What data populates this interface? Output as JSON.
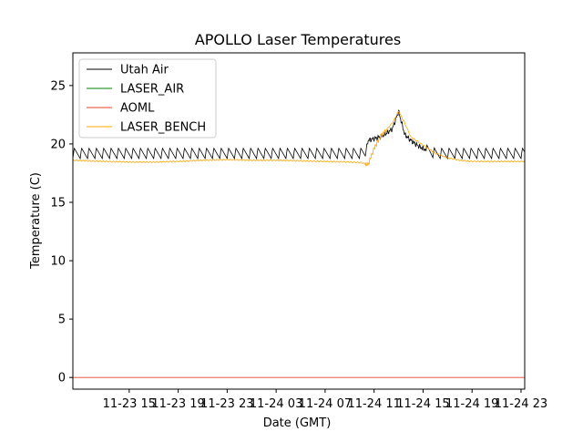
{
  "chart_data": {
    "type": "line",
    "title": "APOLLO Laser Temperatures",
    "xlabel": "Date (GMT)",
    "ylabel": "Temperature (C)",
    "ylim": [
      -1.0,
      27.8
    ],
    "xlim_hours": [
      -4.6,
      32.3
    ],
    "x_tick_hours": [
      0,
      4,
      8,
      12,
      16,
      20,
      24,
      28,
      32
    ],
    "x_tick_labels": [
      "11-23 15",
      "11-23 19",
      "11-23 23",
      "11-24 03",
      "11-24 07",
      "11-24 11",
      "11-24 15",
      "11-24 19",
      "11-24 23"
    ],
    "y_ticks": [
      0,
      5,
      10,
      15,
      20,
      25
    ],
    "y_tick_labels": [
      "0",
      "5",
      "10",
      "15",
      "20",
      "25"
    ],
    "legend_location": "upper-left",
    "grid": false,
    "series": [
      {
        "name": "Utah Air",
        "color": "#000000",
        "x_hours": [
          -4.6,
          19.3,
          19.5,
          20.5,
          21.0,
          21.5,
          22.0,
          22.5,
          23.0,
          23.5,
          24.0,
          25.0,
          26.0,
          27.0,
          28.0,
          32.3
        ],
        "values": [
          19.2,
          19.2,
          20.3,
          20.6,
          20.9,
          21.3,
          22.8,
          20.8,
          20.3,
          19.9,
          19.6,
          19.2,
          19.2,
          19.2,
          19.2,
          19.2
        ],
        "sawtooth_amplitude": 0.45,
        "sawtooth_period_hours": 0.6
      },
      {
        "name": "LASER_AIR",
        "color": "#008000",
        "x_hours": [],
        "values": []
      },
      {
        "name": "AOML",
        "color": "#e8402a",
        "x_hours": [
          -4.6,
          32.3
        ],
        "values": [
          0.0,
          0.0
        ]
      },
      {
        "name": "LASER_BENCH",
        "color": "#ffa500",
        "x_hours": [
          -4.6,
          -2.0,
          0.0,
          2.0,
          4.0,
          6.0,
          8.0,
          10.0,
          12.0,
          14.0,
          16.0,
          18.0,
          19.0,
          19.5,
          20.0,
          20.5,
          21.0,
          21.5,
          22.0,
          22.5,
          23.0,
          24.0,
          25.0,
          26.0,
          27.0,
          28.0,
          30.0,
          32.3
        ],
        "values": [
          18.6,
          18.5,
          18.45,
          18.45,
          18.5,
          18.6,
          18.65,
          18.6,
          18.6,
          18.55,
          18.5,
          18.45,
          18.4,
          18.2,
          19.6,
          20.6,
          21.2,
          21.8,
          22.8,
          21.8,
          20.6,
          19.9,
          19.2,
          18.8,
          18.6,
          18.5,
          18.5,
          18.5
        ]
      }
    ]
  }
}
